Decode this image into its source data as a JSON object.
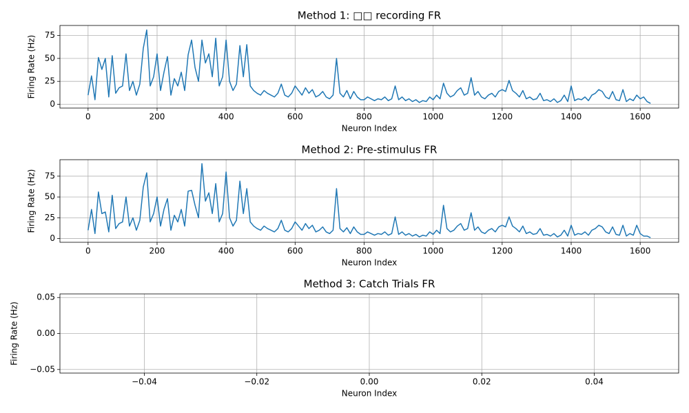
{
  "chart_data": [
    {
      "type": "line",
      "title": "Method 1: □□ recording FR",
      "x_label": "Neuron Index",
      "y_label": "Firing Rate (Hz)",
      "grid": true,
      "xlim": [
        -81.5,
        1711.5
      ],
      "xticks": [
        0,
        200,
        400,
        600,
        800,
        1000,
        1200,
        1400,
        1600
      ],
      "ylim": [
        -4.1,
        85.9
      ],
      "yticks": [
        0,
        25,
        50,
        75
      ],
      "x": [
        0,
        10,
        20,
        30,
        40,
        50,
        60,
        70,
        80,
        90,
        100,
        110,
        120,
        130,
        140,
        150,
        160,
        170,
        180,
        190,
        200,
        210,
        220,
        230,
        240,
        250,
        260,
        270,
        280,
        290,
        300,
        310,
        320,
        330,
        340,
        350,
        360,
        370,
        380,
        390,
        400,
        410,
        420,
        430,
        440,
        450,
        460,
        470,
        480,
        490,
        500,
        510,
        520,
        530,
        540,
        550,
        560,
        570,
        580,
        590,
        600,
        610,
        620,
        630,
        640,
        650,
        660,
        670,
        680,
        690,
        700,
        710,
        720,
        730,
        740,
        750,
        760,
        770,
        780,
        790,
        800,
        810,
        820,
        830,
        840,
        850,
        860,
        870,
        880,
        890,
        900,
        910,
        920,
        930,
        940,
        950,
        960,
        970,
        980,
        990,
        1000,
        1010,
        1020,
        1030,
        1040,
        1050,
        1060,
        1070,
        1080,
        1090,
        1100,
        1110,
        1120,
        1130,
        1140,
        1150,
        1160,
        1170,
        1180,
        1190,
        1200,
        1210,
        1220,
        1230,
        1240,
        1250,
        1260,
        1270,
        1280,
        1290,
        1300,
        1310,
        1320,
        1330,
        1340,
        1350,
        1360,
        1370,
        1380,
        1390,
        1400,
        1410,
        1420,
        1430,
        1440,
        1450,
        1460,
        1470,
        1480,
        1490,
        1500,
        1510,
        1520,
        1530,
        1540,
        1550,
        1560,
        1570,
        1580,
        1590,
        1600,
        1610,
        1620,
        1630
      ],
      "series": [
        {
          "color": "#1f77b4",
          "values": [
            10,
            31,
            5,
            51,
            38,
            50,
            8,
            53,
            12,
            18,
            20,
            55,
            15,
            25,
            10,
            22,
            61,
            81,
            20,
            30,
            55,
            15,
            35,
            52,
            10,
            28,
            20,
            35,
            15,
            54,
            70,
            40,
            25,
            70,
            45,
            55,
            30,
            72,
            20,
            30,
            70,
            25,
            15,
            22,
            64,
            30,
            65,
            20,
            15,
            12,
            10,
            15,
            12,
            10,
            8,
            12,
            22,
            10,
            8,
            12,
            20,
            15,
            10,
            18,
            12,
            16,
            8,
            10,
            14,
            8,
            6,
            10,
            50,
            12,
            8,
            15,
            6,
            14,
            8,
            5,
            5,
            8,
            6,
            4,
            6,
            5,
            8,
            4,
            6,
            20,
            5,
            8,
            4,
            6,
            3,
            5,
            2,
            4,
            3,
            8,
            5,
            10,
            6,
            23,
            12,
            8,
            10,
            15,
            18,
            10,
            12,
            29,
            10,
            14,
            8,
            6,
            10,
            12,
            8,
            14,
            16,
            14,
            26,
            15,
            12,
            8,
            15,
            6,
            8,
            5,
            6,
            12,
            4,
            5,
            3,
            6,
            2,
            4,
            10,
            3,
            20,
            4,
            6,
            5,
            8,
            4,
            10,
            12,
            16,
            14,
            8,
            6,
            14,
            5,
            4,
            16,
            3,
            6,
            4,
            10,
            6,
            8,
            3,
            1
          ]
        }
      ]
    },
    {
      "type": "line",
      "title": "Method 2: Pre-stimulus FR",
      "x_label": "Neuron Index",
      "y_label": "Firing Rate (Hz)",
      "grid": true,
      "xlim": [
        -81.5,
        1711.5
      ],
      "xticks": [
        0,
        200,
        400,
        600,
        800,
        1000,
        1200,
        1400,
        1600
      ],
      "ylim": [
        -4.5,
        94.8
      ],
      "yticks": [
        0,
        25,
        50,
        75
      ],
      "x": [
        0,
        10,
        20,
        30,
        40,
        50,
        60,
        70,
        80,
        90,
        100,
        110,
        120,
        130,
        140,
        150,
        160,
        170,
        180,
        190,
        200,
        210,
        220,
        230,
        240,
        250,
        260,
        270,
        280,
        290,
        300,
        310,
        320,
        330,
        340,
        350,
        360,
        370,
        380,
        390,
        400,
        410,
        420,
        430,
        440,
        450,
        460,
        470,
        480,
        490,
        500,
        510,
        520,
        530,
        540,
        550,
        560,
        570,
        580,
        590,
        600,
        610,
        620,
        630,
        640,
        650,
        660,
        670,
        680,
        690,
        700,
        710,
        720,
        730,
        740,
        750,
        760,
        770,
        780,
        790,
        800,
        810,
        820,
        830,
        840,
        850,
        860,
        870,
        880,
        890,
        900,
        910,
        920,
        930,
        940,
        950,
        960,
        970,
        980,
        990,
        1000,
        1010,
        1020,
        1030,
        1040,
        1050,
        1060,
        1070,
        1080,
        1090,
        1100,
        1110,
        1120,
        1130,
        1140,
        1150,
        1160,
        1170,
        1180,
        1190,
        1200,
        1210,
        1220,
        1230,
        1240,
        1250,
        1260,
        1270,
        1280,
        1290,
        1300,
        1310,
        1320,
        1330,
        1340,
        1350,
        1360,
        1370,
        1380,
        1390,
        1400,
        1410,
        1420,
        1430,
        1440,
        1450,
        1460,
        1470,
        1480,
        1490,
        1500,
        1510,
        1520,
        1530,
        1540,
        1550,
        1560,
        1570,
        1580,
        1590,
        1600,
        1610,
        1620,
        1630
      ],
      "series": [
        {
          "color": "#1f77b4",
          "values": [
            10,
            35,
            6,
            56,
            30,
            32,
            8,
            52,
            12,
            18,
            20,
            50,
            15,
            25,
            10,
            22,
            62,
            79,
            20,
            30,
            50,
            15,
            35,
            48,
            10,
            28,
            20,
            35,
            15,
            57,
            58,
            40,
            25,
            90,
            45,
            55,
            30,
            66,
            20,
            30,
            80,
            25,
            15,
            22,
            69,
            30,
            60,
            20,
            15,
            12,
            10,
            15,
            12,
            10,
            8,
            12,
            22,
            10,
            8,
            12,
            20,
            15,
            10,
            18,
            12,
            16,
            8,
            10,
            14,
            8,
            6,
            10,
            60,
            12,
            8,
            13,
            6,
            14,
            8,
            5,
            5,
            8,
            6,
            4,
            6,
            5,
            8,
            4,
            6,
            26,
            5,
            8,
            4,
            6,
            3,
            5,
            2,
            4,
            3,
            8,
            5,
            10,
            6,
            40,
            12,
            8,
            10,
            15,
            18,
            10,
            12,
            31,
            10,
            14,
            8,
            6,
            10,
            12,
            8,
            14,
            16,
            14,
            26,
            15,
            12,
            8,
            15,
            6,
            8,
            5,
            6,
            12,
            4,
            5,
            3,
            6,
            2,
            4,
            10,
            3,
            16,
            4,
            6,
            5,
            8,
            4,
            10,
            12,
            16,
            14,
            8,
            6,
            14,
            5,
            4,
            16,
            3,
            6,
            4,
            16,
            6,
            3,
            3,
            1
          ]
        }
      ]
    },
    {
      "type": "line",
      "title": "Method 3: Catch Trials FR",
      "x_label": "Neuron Index",
      "y_label": "Firing Rate (Hz)",
      "grid": true,
      "xlim": [
        -0.055,
        0.055
      ],
      "xticks": [
        {
          "value": -0.04,
          "label": "−0.04"
        },
        {
          "value": -0.02,
          "label": "−0.02"
        },
        {
          "value": 0,
          "label": "0.00"
        },
        0.02,
        0.04
      ],
      "ylim": [
        -0.055,
        0.055
      ],
      "yticks": [
        {
          "value": -0.05,
          "label": "−0.05"
        },
        {
          "value": 0,
          "label": "0.00"
        },
        0.05
      ],
      "x": [],
      "series": [
        {
          "color": "#1f77b4",
          "values": []
        }
      ]
    }
  ]
}
